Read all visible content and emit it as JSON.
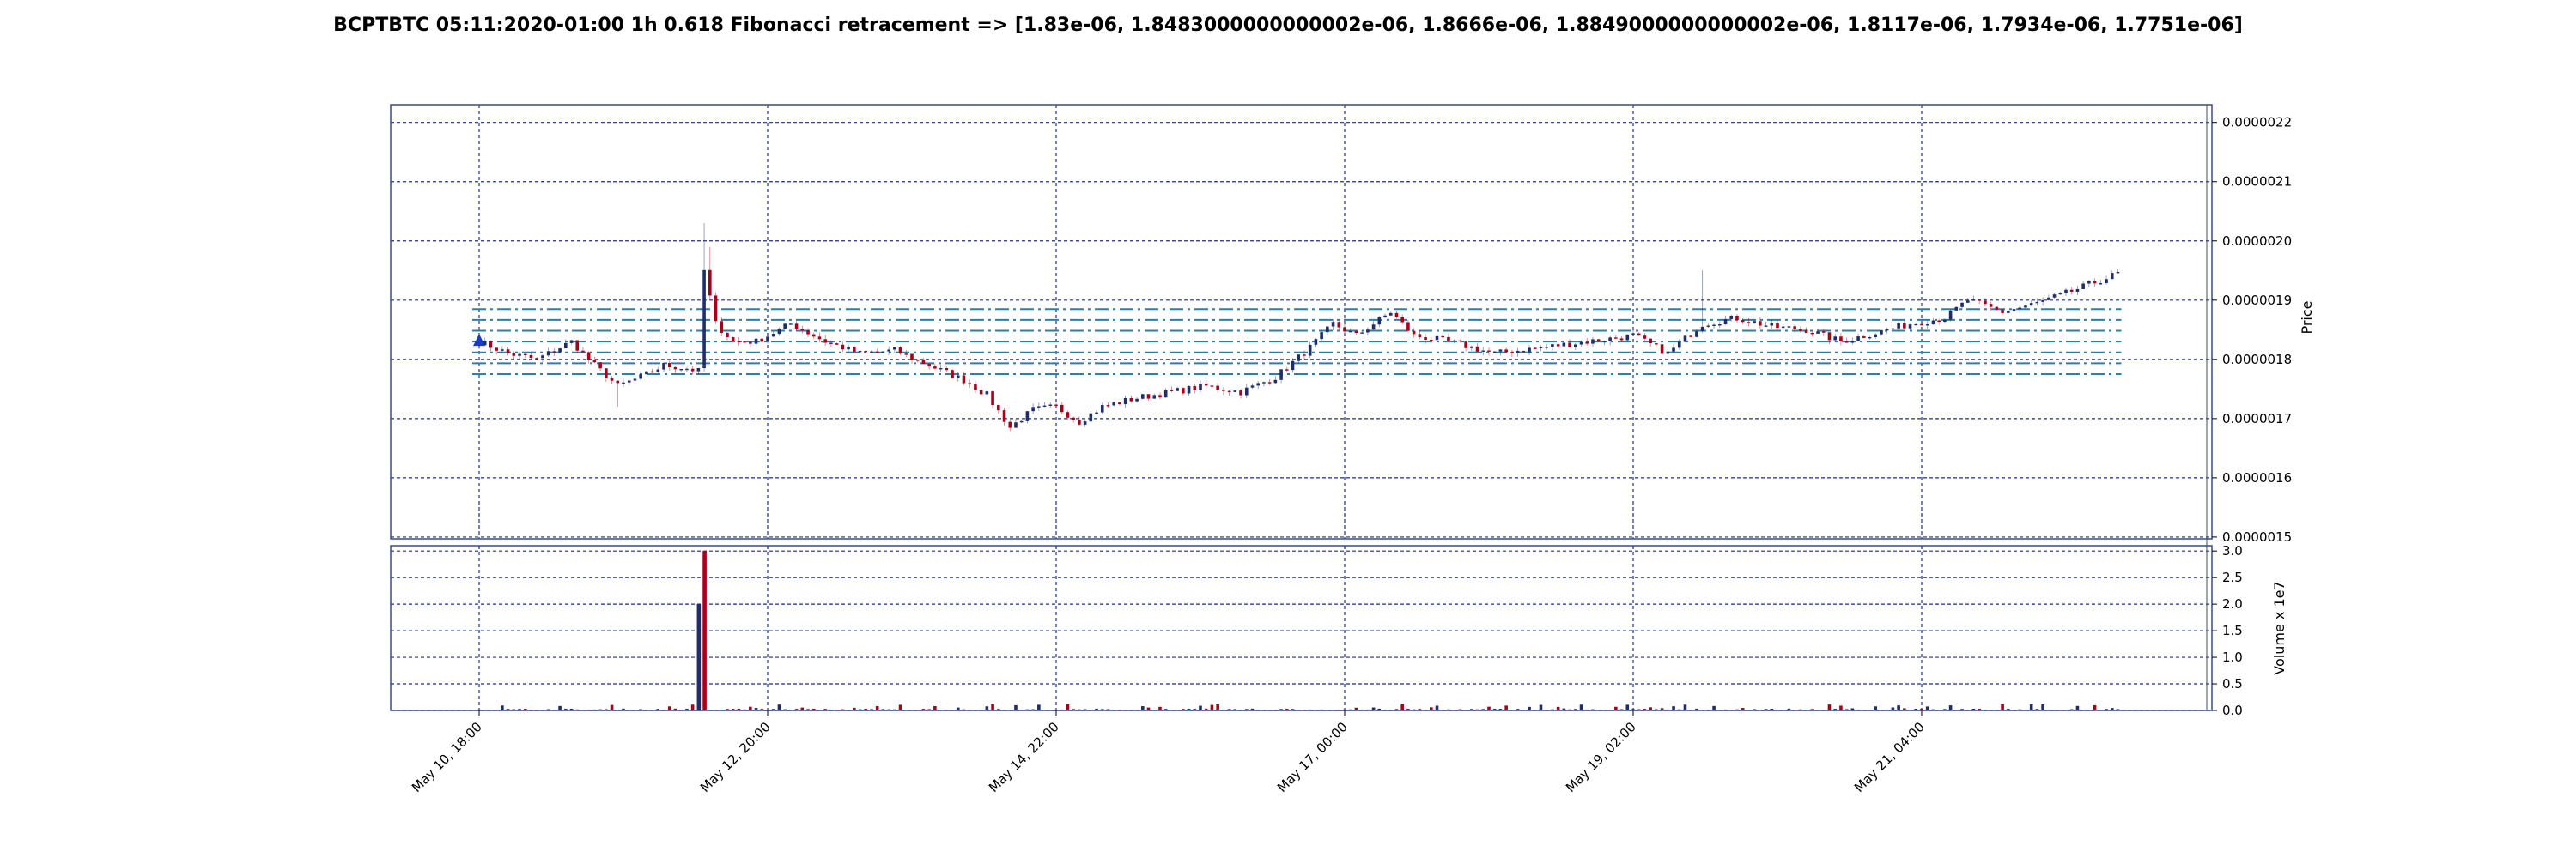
{
  "chart_data": {
    "type": "candlestick",
    "title": "BCPTBTC 05:11:2020-01:00 1h 0.618 Fibonacci retracement => [1.83e-06, 1.8483000000000002e-06, 1.8666e-06, 1.8849000000000002e-06, 1.8117e-06, 1.7934e-06, 1.7751e-06]",
    "price_axis": {
      "label": "Price",
      "ticks": [
        "0.0000015",
        "0.0000016",
        "0.0000017",
        "0.0000018",
        "0.0000019",
        "0.0000020",
        "0.0000021",
        "0.0000022"
      ],
      "tick_values": [
        1.5e-06,
        1.6e-06,
        1.7e-06,
        1.8e-06,
        1.9e-06,
        2e-06,
        2.1e-06,
        2.2e-06
      ],
      "ylim": [
        1.497e-06,
        2.23e-06
      ]
    },
    "volume_axis": {
      "label": "Volume x 1e7",
      "ticks": [
        "0.0",
        "0.5",
        "1.0",
        "1.5",
        "2.0",
        "2.5",
        "3.0"
      ],
      "tick_values": [
        0,
        0.5,
        1.0,
        1.5,
        2.0,
        2.5,
        3.0
      ],
      "ylim": [
        0,
        3.1
      ]
    },
    "x_ticks": [
      "May 10, 18:00",
      "May 12, 20:00",
      "May 14, 22:00",
      "May 17, 00:00",
      "May 19, 02:00",
      "May 21, 04:00"
    ],
    "x_tick_indices": [
      0,
      50,
      100,
      150,
      200,
      250
    ],
    "bar_count": 285,
    "fib_levels": [
      1.83e-06,
      1.8483e-06,
      1.8666e-06,
      1.8849e-06,
      1.8117e-06,
      1.7934e-06,
      1.7751e-06
    ],
    "marker": {
      "index": 0,
      "price": 1.83e-06
    },
    "price_anchors": [
      [
        0,
        1.83e-06
      ],
      [
        5,
        1.81e-06
      ],
      [
        10,
        1.8e-06
      ],
      [
        16,
        1.83e-06
      ],
      [
        20,
        1.79e-06
      ],
      [
        24,
        1.755e-06
      ],
      [
        28,
        1.77e-06
      ],
      [
        32,
        1.79e-06
      ],
      [
        36,
        1.785e-06
      ],
      [
        38,
        1.78e-06
      ],
      [
        39,
        1.95e-06
      ],
      [
        41,
        1.86e-06
      ],
      [
        44,
        1.83e-06
      ],
      [
        48,
        1.83e-06
      ],
      [
        54,
        1.86e-06
      ],
      [
        60,
        1.83e-06
      ],
      [
        66,
        1.81e-06
      ],
      [
        72,
        1.815e-06
      ],
      [
        78,
        1.79e-06
      ],
      [
        84,
        1.765e-06
      ],
      [
        88,
        1.74e-06
      ],
      [
        92,
        1.685e-06
      ],
      [
        96,
        1.715e-06
      ],
      [
        100,
        1.72e-06
      ],
      [
        104,
        1.695e-06
      ],
      [
        108,
        1.72e-06
      ],
      [
        114,
        1.735e-06
      ],
      [
        120,
        1.745e-06
      ],
      [
        126,
        1.755e-06
      ],
      [
        132,
        1.745e-06
      ],
      [
        138,
        1.77e-06
      ],
      [
        144,
        1.82e-06
      ],
      [
        148,
        1.86e-06
      ],
      [
        152,
        1.84e-06
      ],
      [
        158,
        1.88e-06
      ],
      [
        162,
        1.84e-06
      ],
      [
        168,
        1.83e-06
      ],
      [
        176,
        1.81e-06
      ],
      [
        184,
        1.82e-06
      ],
      [
        192,
        1.83e-06
      ],
      [
        200,
        1.84e-06
      ],
      [
        206,
        1.81e-06
      ],
      [
        212,
        1.86e-06
      ],
      [
        218,
        1.87e-06
      ],
      [
        224,
        1.855e-06
      ],
      [
        230,
        1.85e-06
      ],
      [
        236,
        1.83e-06
      ],
      [
        242,
        1.845e-06
      ],
      [
        248,
        1.86e-06
      ],
      [
        254,
        1.87e-06
      ],
      [
        258,
        1.9e-06
      ],
      [
        264,
        1.88e-06
      ],
      [
        270,
        1.895e-06
      ],
      [
        276,
        1.915e-06
      ],
      [
        280,
        1.93e-06
      ],
      [
        284,
        1.945e-06
      ]
    ],
    "volume_spikes": [
      {
        "index": 38,
        "value": 2.0
      },
      {
        "index": 39,
        "value": 3.0
      }
    ],
    "colors": {
      "up": "#1f2d6b",
      "down": "#a8001c",
      "grid": "#1c2f8a",
      "fib": "#2e7fa6",
      "axes": "#3a4a8a",
      "marker": "#1a3bc8"
    },
    "grid": true
  }
}
